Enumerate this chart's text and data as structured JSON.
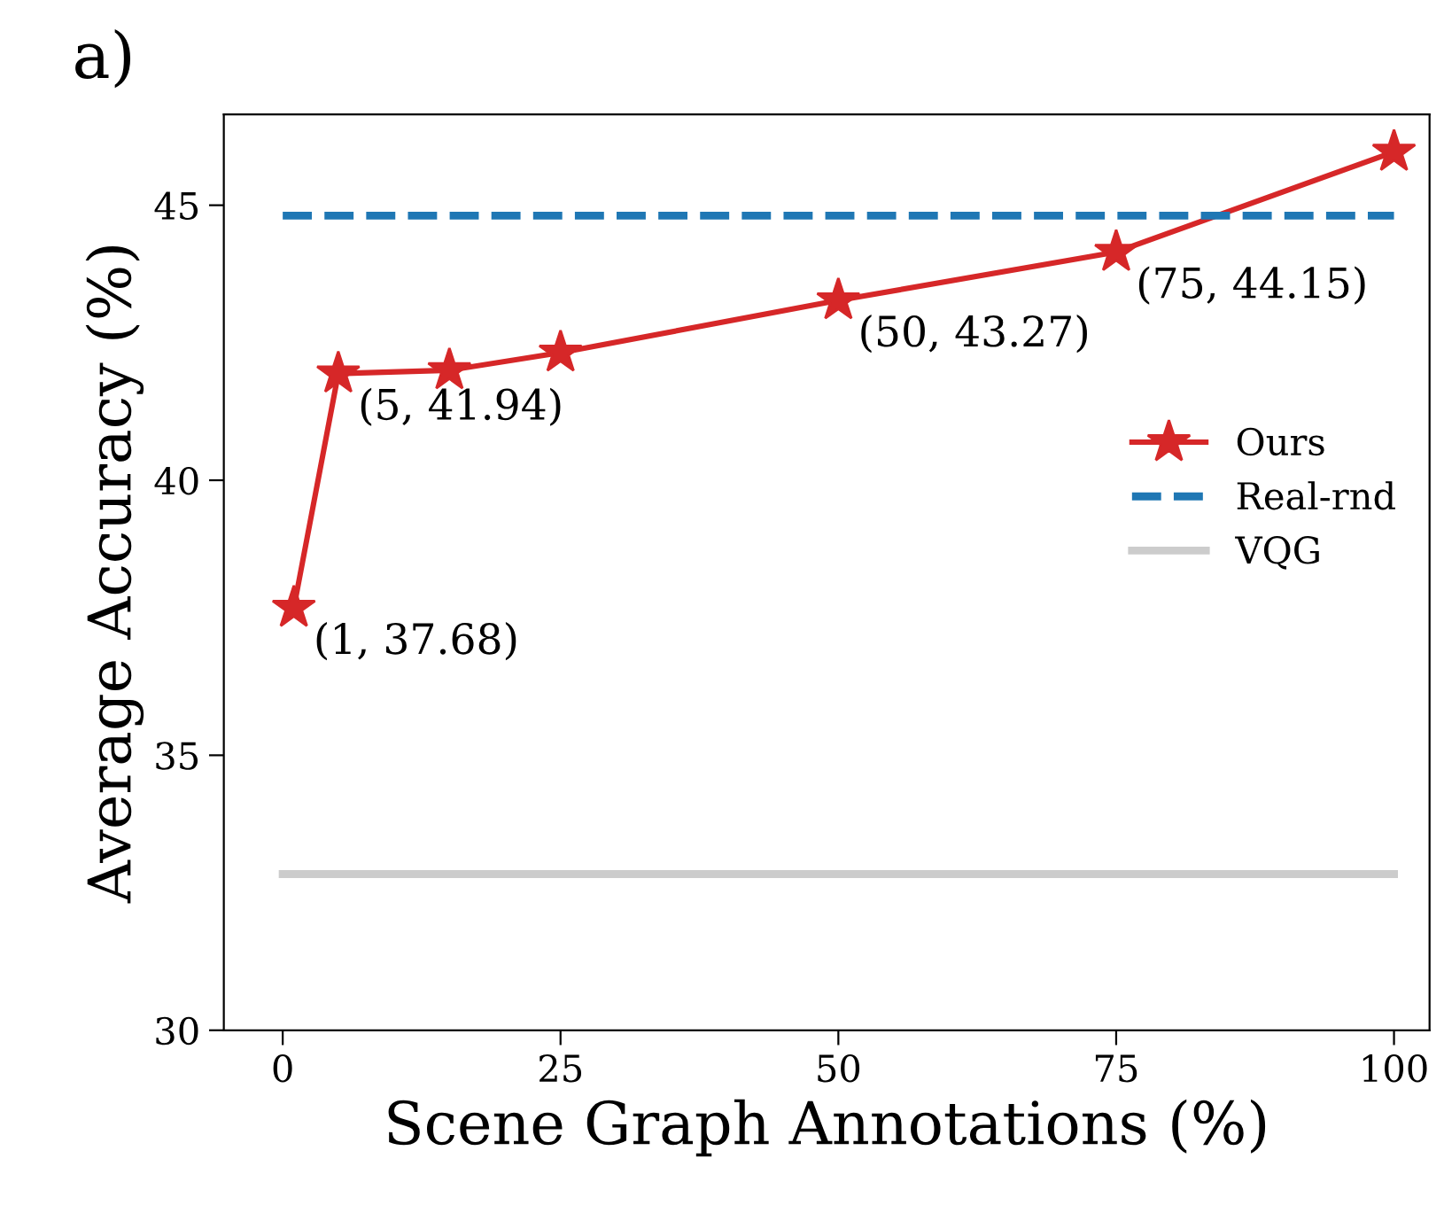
{
  "chart_data": {
    "type": "line",
    "title": "a)",
    "xlabel": "Scene Graph Annotations (%)",
    "ylabel": "Average Accuracy (%)",
    "series": [
      {
        "name": "Ours",
        "color": "#d62728",
        "x": [
          1,
          5,
          15,
          25,
          50,
          75,
          100
        ],
        "values": [
          37.68,
          41.94,
          42.0,
          42.32,
          43.27,
          44.15,
          45.97
        ],
        "marker": "star",
        "line_style": "solid"
      },
      {
        "name": "Real-rnd",
        "color": "#1f77b4",
        "x": [
          0,
          100
        ],
        "values": [
          44.81,
          44.81
        ],
        "marker": "none",
        "line_style": "dashed"
      },
      {
        "name": "VQG",
        "color": "#cccccc",
        "x": [
          0,
          100
        ],
        "values": [
          32.84,
          32.84
        ],
        "marker": "none",
        "line_style": "solid"
      }
    ],
    "annotations": [
      {
        "text": "(1, 37.68)",
        "x": 1,
        "y": 37.68
      },
      {
        "text": "(5, 41.94)",
        "x": 5,
        "y": 41.94
      },
      {
        "text": "(50, 43.27)",
        "x": 50,
        "y": 43.27
      },
      {
        "text": "(75, 44.15)",
        "x": 75,
        "y": 44.15
      }
    ],
    "xlim": [
      -5.3,
      103.2
    ],
    "ylim": [
      30,
      46.65
    ],
    "xticks": [
      0,
      25,
      50,
      75,
      100
    ],
    "yticks": [
      30,
      35,
      40,
      45
    ],
    "legend": "center right",
    "grid": false
  }
}
